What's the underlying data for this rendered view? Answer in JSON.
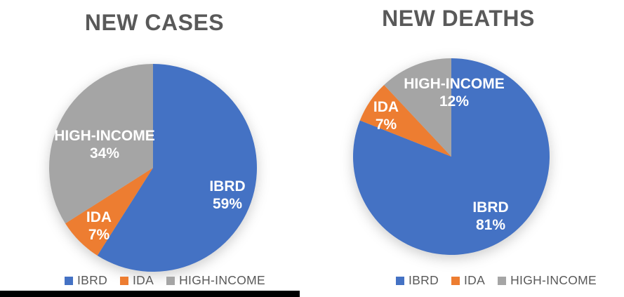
{
  "page": {
    "background": "#ffffff"
  },
  "text_colors": {
    "title": "#595959",
    "legend": "#595959",
    "data_label": "#FFFFFF"
  },
  "chart_data": [
    {
      "type": "pie",
      "title": "NEW CASES",
      "labels": [
        "IBRD",
        "IDA",
        "HIGH-INCOME"
      ],
      "values": [
        59,
        7,
        34
      ],
      "value_labels": [
        "59%",
        "7%",
        "34%"
      ],
      "colors": [
        "#4472C4",
        "#ED7D31",
        "#A5A5A5"
      ],
      "start_angle_deg": 0,
      "direction": "clockwise",
      "legend": [
        "IBRD",
        "IDA",
        "HIGH-INCOME"
      ],
      "legend_position": "bottom"
    },
    {
      "type": "pie",
      "title": "NEW DEATHS",
      "labels": [
        "IBRD",
        "IDA",
        "HIGH-INCOME"
      ],
      "values": [
        81,
        7,
        12
      ],
      "value_labels": [
        "81%",
        "7%",
        "12%"
      ],
      "colors": [
        "#4472C4",
        "#ED7D31",
        "#A5A5A5"
      ],
      "start_angle_deg": 0,
      "direction": "clockwise",
      "legend": [
        "IBRD",
        "IDA",
        "HIGH-INCOME"
      ],
      "legend_position": "bottom"
    }
  ]
}
